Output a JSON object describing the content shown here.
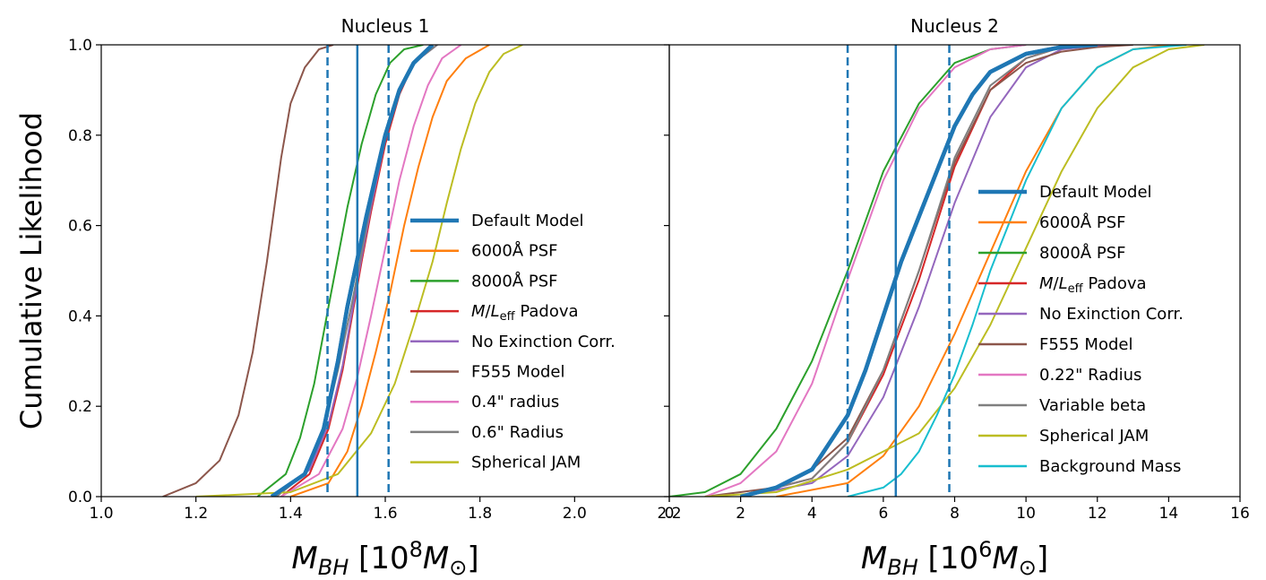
{
  "shared": {
    "ylabel": "Cumulative Likelihood",
    "yticks": [
      "0.0",
      "0.2",
      "0.4",
      "0.6",
      "0.8",
      "1.0"
    ]
  },
  "chart_data": [
    {
      "type": "line",
      "title": "Nucleus 1",
      "xlabel_main": "M",
      "xlabel_sub": "BH",
      "xlabel_unit_pre": " [10",
      "xlabel_exp": "8",
      "xlabel_unit_mid": "M",
      "xlabel_unit_sub": "⊙",
      "xlabel_unit_post": "]",
      "xlim": [
        1.0,
        2.2
      ],
      "ylim": [
        0.0,
        1.0
      ],
      "xticks": [
        "1.0",
        "1.2",
        "1.4",
        "1.6",
        "1.8",
        "2.0",
        "2.2"
      ],
      "xtick_values": [
        1.0,
        1.2,
        1.4,
        1.6,
        1.8,
        2.0,
        2.2
      ],
      "vlines": [
        {
          "x": 1.478,
          "style": "dashed",
          "color": "#1f77b4"
        },
        {
          "x": 1.541,
          "style": "solid",
          "color": "#1f77b4"
        },
        {
          "x": 1.607,
          "style": "dashed",
          "color": "#1f77b4"
        }
      ],
      "series": [
        {
          "name": "Default Model",
          "color": "#1f77b4",
          "width": 4.5,
          "x": [
            1.36,
            1.43,
            1.47,
            1.5,
            1.52,
            1.54,
            1.56,
            1.58,
            1.6,
            1.63,
            1.66,
            1.7
          ],
          "y": [
            0,
            0.05,
            0.15,
            0.3,
            0.42,
            0.52,
            0.62,
            0.71,
            0.8,
            0.9,
            0.96,
            1.0
          ]
        },
        {
          "name": "6000Å  PSF",
          "color": "#ff7f0e",
          "width": 2,
          "x": [
            1.4,
            1.48,
            1.52,
            1.55,
            1.58,
            1.61,
            1.64,
            1.67,
            1.7,
            1.73,
            1.77,
            1.82
          ],
          "y": [
            0,
            0.03,
            0.1,
            0.2,
            0.32,
            0.45,
            0.6,
            0.73,
            0.84,
            0.92,
            0.97,
            1.0
          ]
        },
        {
          "name": "8000Å  PSF",
          "color": "#2ca02c",
          "width": 2,
          "x": [
            1.33,
            1.39,
            1.42,
            1.45,
            1.48,
            1.5,
            1.52,
            1.55,
            1.58,
            1.61,
            1.64,
            1.68
          ],
          "y": [
            0,
            0.05,
            0.13,
            0.25,
            0.42,
            0.53,
            0.64,
            0.78,
            0.89,
            0.96,
            0.99,
            1.0
          ]
        },
        {
          "name": "M/Leff Padova",
          "color": "#d62728",
          "width": 2,
          "x": [
            1.38,
            1.44,
            1.48,
            1.51,
            1.53,
            1.55,
            1.57,
            1.6,
            1.63,
            1.66,
            1.7
          ],
          "y": [
            0,
            0.05,
            0.15,
            0.28,
            0.4,
            0.52,
            0.63,
            0.78,
            0.89,
            0.96,
            1.0
          ]
        },
        {
          "name": "No Exinction Corr.",
          "color": "#9467bd",
          "width": 2,
          "x": [
            1.37,
            1.44,
            1.48,
            1.51,
            1.53,
            1.55,
            1.57,
            1.6,
            1.63,
            1.66,
            1.71
          ],
          "y": [
            0,
            0.06,
            0.16,
            0.29,
            0.41,
            0.53,
            0.64,
            0.79,
            0.9,
            0.96,
            1.0
          ]
        },
        {
          "name": "F555 Model",
          "color": "#8c564b",
          "width": 2,
          "x": [
            1.13,
            1.2,
            1.25,
            1.29,
            1.32,
            1.35,
            1.38,
            1.4,
            1.43,
            1.46,
            1.49
          ],
          "y": [
            0,
            0.03,
            0.08,
            0.18,
            0.32,
            0.52,
            0.75,
            0.87,
            0.95,
            0.99,
            1.0
          ]
        },
        {
          "name": "0.4\" radius",
          "color": "#e377c2",
          "width": 2,
          "x": [
            1.38,
            1.46,
            1.51,
            1.54,
            1.57,
            1.6,
            1.63,
            1.66,
            1.69,
            1.72,
            1.76
          ],
          "y": [
            0,
            0.05,
            0.15,
            0.26,
            0.4,
            0.55,
            0.7,
            0.82,
            0.91,
            0.97,
            1.0
          ]
        },
        {
          "name": "0.6\" Radius",
          "color": "#7f7f7f",
          "width": 2,
          "x": [
            1.37,
            1.43,
            1.47,
            1.5,
            1.53,
            1.55,
            1.57,
            1.6,
            1.63,
            1.66,
            1.71
          ],
          "y": [
            0,
            0.05,
            0.15,
            0.28,
            0.43,
            0.54,
            0.65,
            0.8,
            0.9,
            0.96,
            1.0
          ]
        },
        {
          "name": "Spherical JAM",
          "color": "#bcbd22",
          "width": 2,
          "x": [
            1.2,
            1.4,
            1.5,
            1.57,
            1.62,
            1.66,
            1.7,
            1.73,
            1.76,
            1.79,
            1.82,
            1.85,
            1.89
          ],
          "y": [
            0,
            0.01,
            0.05,
            0.14,
            0.25,
            0.38,
            0.52,
            0.65,
            0.77,
            0.87,
            0.94,
            0.98,
            1.0
          ]
        }
      ],
      "legend": {
        "placement": "center-right",
        "items": [
          "Default Model",
          "6000Å  PSF",
          "8000Å  PSF",
          "M/Leff Padova",
          "No Exinction Corr.",
          "F555 Model",
          "0.4\" radius",
          "0.6\" Radius",
          "Spherical JAM"
        ]
      }
    },
    {
      "type": "line",
      "title": "Nucleus 2",
      "xlabel_main": "M",
      "xlabel_sub": "BH",
      "xlabel_unit_pre": " [10",
      "xlabel_exp": "6",
      "xlabel_unit_mid": "M",
      "xlabel_unit_sub": "⊙",
      "xlabel_unit_post": "]",
      "xlim": [
        0,
        16
      ],
      "ylim": [
        0.0,
        1.0
      ],
      "xticks": [
        "0",
        "2",
        "4",
        "6",
        "8",
        "10",
        "12",
        "14",
        "16"
      ],
      "xtick_values": [
        0,
        2,
        4,
        6,
        8,
        10,
        12,
        14,
        16
      ],
      "vlines": [
        {
          "x": 5.0,
          "style": "dashed",
          "color": "#1f77b4"
        },
        {
          "x": 6.35,
          "style": "solid",
          "color": "#1f77b4"
        },
        {
          "x": 7.85,
          "style": "dashed",
          "color": "#1f77b4"
        }
      ],
      "series": [
        {
          "name": "Default Model",
          "color": "#1f77b4",
          "width": 4.5,
          "x": [
            2,
            3,
            4,
            5,
            5.5,
            6,
            6.5,
            7,
            7.5,
            8,
            8.5,
            9,
            10,
            11,
            12
          ],
          "y": [
            0,
            0.02,
            0.06,
            0.18,
            0.28,
            0.4,
            0.52,
            0.62,
            0.72,
            0.82,
            0.89,
            0.94,
            0.98,
            0.995,
            1.0
          ]
        },
        {
          "name": "6000Å  PSF",
          "color": "#ff7f0e",
          "width": 2,
          "x": [
            3,
            5,
            6,
            7,
            8,
            9,
            10,
            11,
            12,
            13,
            14
          ],
          "y": [
            0,
            0.03,
            0.09,
            0.2,
            0.36,
            0.54,
            0.72,
            0.86,
            0.95,
            0.99,
            1.0
          ]
        },
        {
          "name": "8000Å  PSF",
          "color": "#2ca02c",
          "width": 2,
          "x": [
            0,
            1,
            2,
            3,
            4,
            5,
            6,
            7,
            8,
            9,
            10
          ],
          "y": [
            0,
            0.01,
            0.05,
            0.15,
            0.3,
            0.5,
            0.72,
            0.87,
            0.96,
            0.99,
            1.0
          ]
        },
        {
          "name": "M/Leff Padova",
          "color": "#d62728",
          "width": 2,
          "x": [
            2,
            4,
            5,
            6,
            7,
            8,
            9,
            10,
            11,
            12
          ],
          "y": [
            0,
            0.04,
            0.12,
            0.27,
            0.48,
            0.73,
            0.9,
            0.97,
            0.995,
            1.0
          ]
        },
        {
          "name": "No Exinction Corr.",
          "color": "#9467bd",
          "width": 2,
          "x": [
            2,
            4,
            5,
            6,
            7,
            8,
            9,
            10,
            11,
            12,
            13
          ],
          "y": [
            0,
            0.03,
            0.09,
            0.22,
            0.42,
            0.65,
            0.84,
            0.95,
            0.99,
            0.998,
            1.0
          ]
        },
        {
          "name": "F555 Model",
          "color": "#8c564b",
          "width": 2,
          "x": [
            1,
            3,
            4,
            5,
            6,
            7,
            8,
            9,
            10,
            11,
            12,
            13
          ],
          "y": [
            0,
            0.02,
            0.06,
            0.13,
            0.28,
            0.5,
            0.74,
            0.9,
            0.96,
            0.985,
            0.995,
            1.0
          ]
        },
        {
          "name": "0.22\" Radius",
          "color": "#e377c2",
          "width": 2,
          "x": [
            1,
            2,
            3,
            4,
            5,
            6,
            7,
            8,
            9,
            10
          ],
          "y": [
            0,
            0.03,
            0.1,
            0.25,
            0.48,
            0.7,
            0.86,
            0.95,
            0.99,
            1.0
          ]
        },
        {
          "name": "Variable beta",
          "color": "#7f7f7f",
          "width": 2,
          "x": [
            2,
            4,
            5,
            6,
            7,
            8,
            9,
            10,
            11,
            12
          ],
          "y": [
            0,
            0.04,
            0.12,
            0.28,
            0.5,
            0.75,
            0.91,
            0.97,
            0.995,
            1.0
          ]
        },
        {
          "name": "Spherical JAM",
          "color": "#bcbd22",
          "width": 2,
          "x": [
            1,
            3,
            5,
            7,
            8,
            9,
            10,
            11,
            12,
            13,
            14,
            15
          ],
          "y": [
            0,
            0.01,
            0.06,
            0.14,
            0.24,
            0.38,
            0.55,
            0.72,
            0.86,
            0.95,
            0.99,
            1.0
          ]
        },
        {
          "name": "Background Mass",
          "color": "#17becf",
          "width": 2,
          "x": [
            5,
            6,
            6.5,
            7,
            7.5,
            8,
            8.5,
            9,
            10,
            11,
            12,
            13,
            14.5
          ],
          "y": [
            0,
            0.02,
            0.05,
            0.1,
            0.18,
            0.27,
            0.38,
            0.5,
            0.7,
            0.86,
            0.95,
            0.99,
            1.0
          ]
        }
      ],
      "legend": {
        "placement": "center-right",
        "items": [
          "Default Model",
          "6000Å  PSF",
          "8000Å  PSF",
          "M/Leff Padova",
          "No Exinction Corr.",
          "F555 Model",
          "0.22\" Radius",
          "Variable beta",
          "Spherical JAM",
          "Background Mass"
        ]
      }
    }
  ]
}
